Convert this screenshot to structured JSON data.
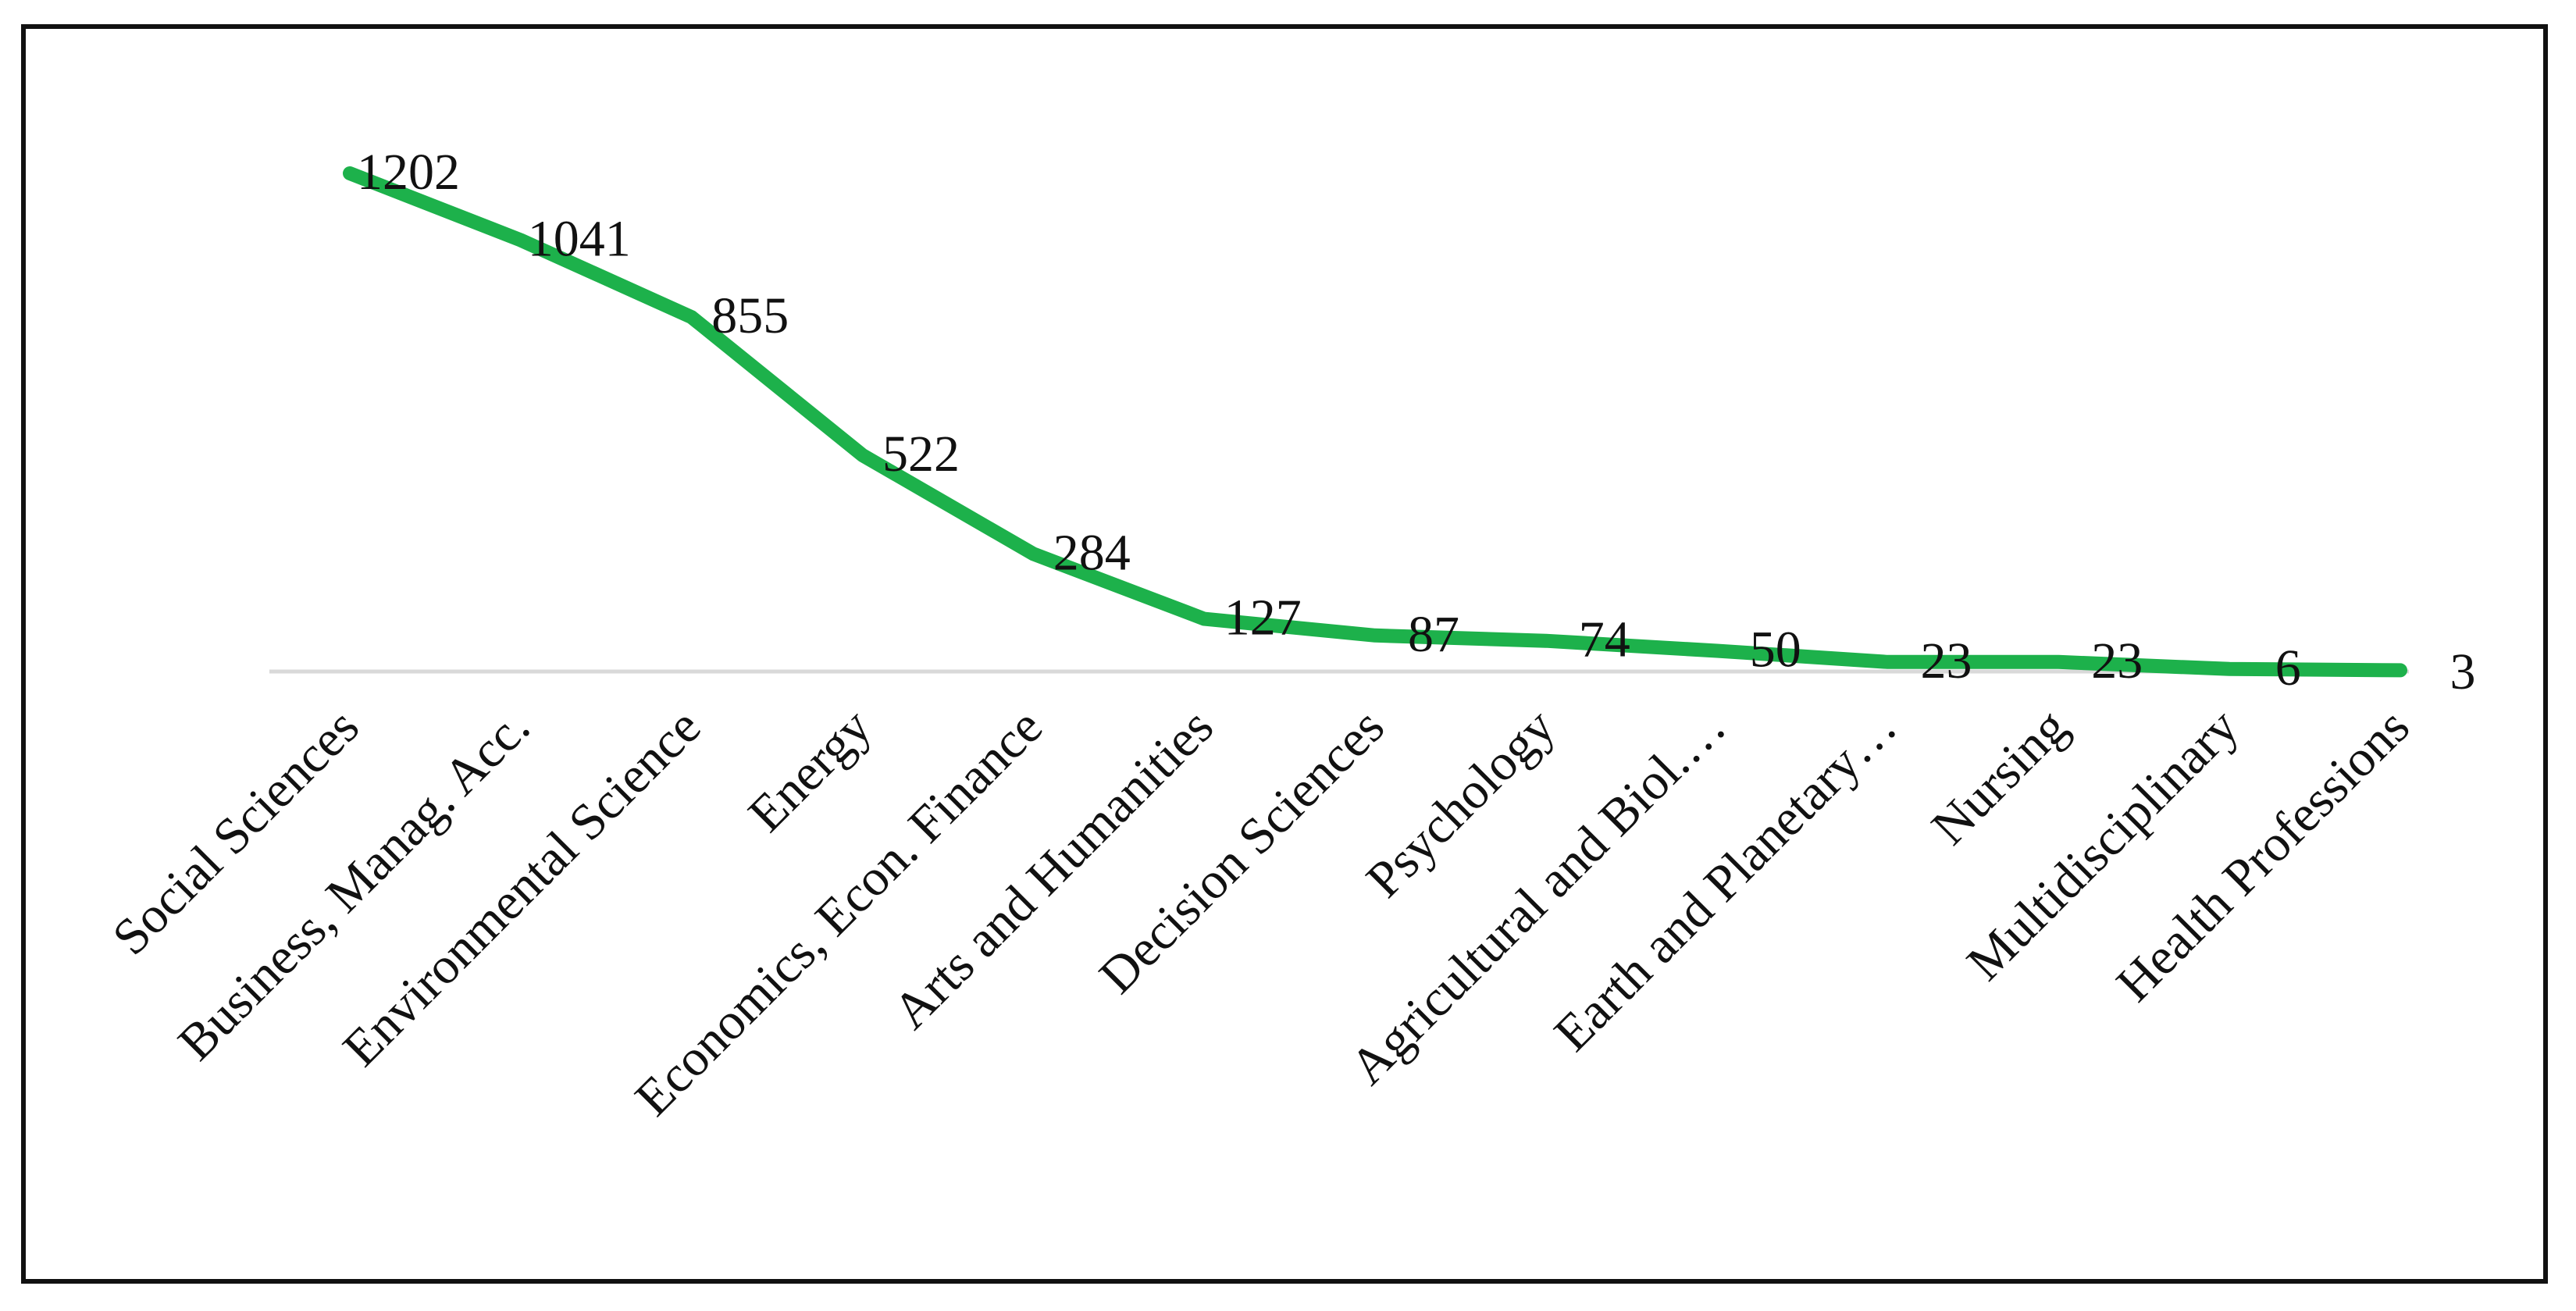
{
  "chart_data": {
    "type": "line",
    "title": "",
    "xlabel": "",
    "ylabel": "",
    "categories": [
      "Social Sciences",
      "Business, Manag. Acc.",
      "Environmental Science",
      "Energy",
      "Economics, Econ. Finance",
      "Arts and Humanities",
      "Decision Sciences",
      "Psychology",
      "Agricultural and Biol.…",
      "Earth and Planetary…",
      "Nursing",
      "Multidisciplinary",
      "Health Professions"
    ],
    "series": [
      {
        "values": [
          1202,
          1041,
          855,
          522,
          284,
          127,
          87,
          74,
          50,
          23,
          23,
          6,
          3
        ],
        "color": "#1db14b"
      }
    ],
    "data_labels": [
      "1202",
      "1041",
      "855",
      "522",
      "284",
      "127",
      "87",
      "74",
      "50",
      "23",
      "23",
      "6",
      "3"
    ],
    "ylim": [
      0,
      1300
    ],
    "grid": false,
    "legend": "none",
    "axis_line_color": "#d9d9d9"
  }
}
